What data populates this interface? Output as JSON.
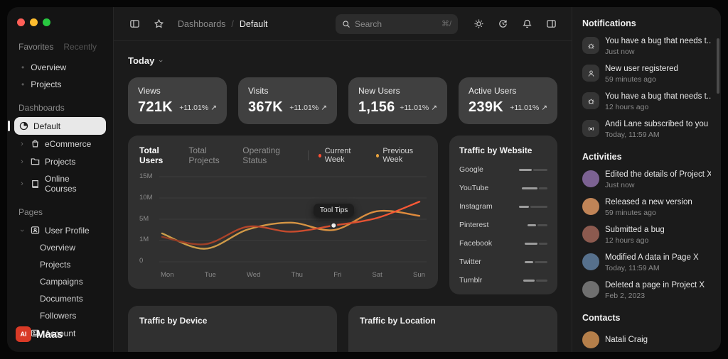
{
  "window": {
    "traffic_lights": [
      "#ff5f57",
      "#febc2e",
      "#28c840"
    ]
  },
  "sidebar": {
    "tabs": [
      {
        "label": "Favorites"
      },
      {
        "label": "Recently"
      }
    ],
    "favorites": [
      {
        "label": "Overview"
      },
      {
        "label": "Projects"
      }
    ],
    "dashboards": {
      "title": "Dashboards",
      "items": [
        {
          "label": "Default",
          "icon": "pie-chart-icon",
          "active": true
        },
        {
          "label": "eCommerce",
          "icon": "shopping-bag-icon"
        },
        {
          "label": "Projects",
          "icon": "folder-icon"
        },
        {
          "label": "Online Courses",
          "icon": "book-icon"
        }
      ]
    },
    "pages": {
      "title": "Pages",
      "user_profile_label": "User Profile",
      "user_profile_children": [
        "Overview",
        "Projects",
        "Campaigns",
        "Documents",
        "Followers"
      ],
      "account_label": "Account"
    },
    "logo": {
      "badge": "AI",
      "text": "Maas",
      "color": "#d93a26"
    }
  },
  "header": {
    "breadcrumb": {
      "section": "Dashboards",
      "separator": "/",
      "page": "Default"
    },
    "search": {
      "placeholder": "Search",
      "shortcut": "⌘/"
    }
  },
  "main": {
    "filter_label": "Today",
    "stats": [
      {
        "label": "Views",
        "value": "721K",
        "delta": "+11.01%",
        "trend": "↗"
      },
      {
        "label": "Visits",
        "value": "367K",
        "delta": "+11.01%",
        "trend": "↗"
      },
      {
        "label": "New Users",
        "value": "1,156",
        "delta": "+11.01%",
        "trend": "↗"
      },
      {
        "label": "Active Users",
        "value": "239K",
        "delta": "+11.01%",
        "trend": "↗"
      }
    ],
    "chart_card": {
      "tabs": [
        "Total Users",
        "Total Projects",
        "Operating Status"
      ],
      "legend": [
        {
          "label": "Current Week",
          "color": "#ff4f33"
        },
        {
          "label": "Previous Week",
          "color": "#e8a33d"
        }
      ],
      "tooltip_label": "Tool Tips"
    },
    "traffic_website": {
      "title": "Traffic by Website",
      "bar_colors": [
        "#9c9c9c",
        "#4d4d4d",
        "#c6c6c6"
      ],
      "sites": [
        {
          "name": "Google",
          "bar": [
            18,
            20
          ]
        },
        {
          "name": "YouTube",
          "bar": [
            22,
            12
          ]
        },
        {
          "name": "Instagram",
          "bar": [
            14,
            24
          ]
        },
        {
          "name": "Pinterest",
          "bar": [
            12,
            14
          ]
        },
        {
          "name": "Facebook",
          "bar": [
            18,
            12
          ]
        },
        {
          "name": "Twitter",
          "bar": [
            12,
            18
          ]
        },
        {
          "name": "Tumblr",
          "bar": [
            16,
            16
          ]
        }
      ]
    },
    "bottom_cards": [
      {
        "title": "Traffic by Device"
      },
      {
        "title": "Traffic by Location"
      }
    ]
  },
  "chart_data": {
    "type": "line",
    "title": "Total Users",
    "x": [
      "Mon",
      "Tue",
      "Wed",
      "Thu",
      "Fri",
      "Sat",
      "Sun"
    ],
    "ylim": [
      0,
      15
    ],
    "unit": "M",
    "yticks_display": [
      "15M",
      "10M",
      "5M",
      "1M",
      "0"
    ],
    "grid": true,
    "legend_position": "top",
    "series": [
      {
        "name": "Current Week",
        "colors": [
          "#8f3b24",
          "#ff5a36"
        ],
        "values": [
          4.4,
          3.1,
          6.2,
          5.3,
          6.4,
          7.7,
          10.6
        ]
      },
      {
        "name": "Previous Week",
        "colors": [
          "#caa04c",
          "#e08a3c"
        ],
        "values": [
          5.0,
          2.3,
          5.7,
          6.9,
          5.6,
          8.9,
          8.1
        ]
      }
    ],
    "tooltip": {
      "label": "Tool Tips",
      "x": "Fri",
      "series": "Current Week",
      "value": 6.4
    }
  },
  "right_panel": {
    "notifications": {
      "title": "Notifications",
      "items": [
        {
          "icon": "bug-icon",
          "title": "You have a bug that needs t...",
          "time": "Just now"
        },
        {
          "icon": "user-icon",
          "title": "New user registered",
          "time": "59 minutes ago"
        },
        {
          "icon": "bug-icon",
          "title": "You have a bug that needs t...",
          "time": "12 hours ago"
        },
        {
          "icon": "broadcast-icon",
          "title": "Andi Lane subscribed to you",
          "time": "Today, 11:59 AM"
        }
      ]
    },
    "activities": {
      "title": "Activities",
      "items": [
        {
          "title": "Edited the details of Project X",
          "time": "Just now",
          "avatar_color": "#7c6292"
        },
        {
          "title": "Released a new version",
          "time": "59 minutes ago",
          "avatar_color": "#c08457"
        },
        {
          "title": "Submitted a bug",
          "time": "12 hours ago",
          "avatar_color": "#8c5a4f"
        },
        {
          "title": "Modified A data in Page X",
          "time": "Today, 11:59 AM",
          "avatar_color": "#56708c"
        },
        {
          "title": "Deleted a page in Project X",
          "time": "Feb 2, 2023",
          "avatar_color": "#6f6f6f"
        }
      ]
    },
    "contacts": {
      "title": "Contacts",
      "items": [
        {
          "name": "Natali Craig",
          "avatar_color": "#b57f4a"
        }
      ]
    }
  }
}
